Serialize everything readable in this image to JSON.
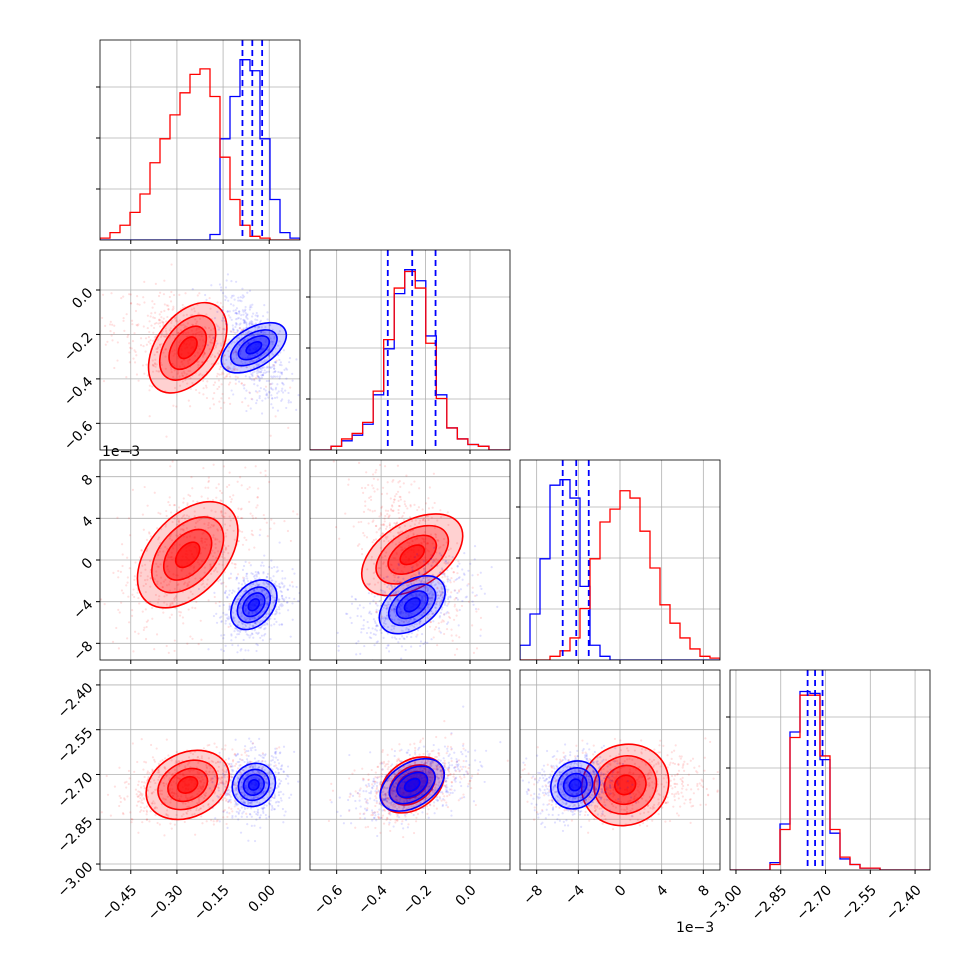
{
  "chart_data": {
    "type": "corner",
    "colors": {
      "blue": "#0000ff",
      "red": "#ff0000"
    },
    "dimensions": [
      {
        "id": "p0",
        "xlim": [
          -0.55,
          0.1
        ],
        "ticks": [
          -0.45,
          -0.3,
          -0.15,
          0.0
        ],
        "tick_labels": [
          "−0.45",
          "−0.30",
          "−0.15",
          "0.00"
        ]
      },
      {
        "id": "p1",
        "xlim": [
          -0.72,
          0.18
        ],
        "ticks": [
          -0.6,
          -0.4,
          -0.2,
          0.0
        ],
        "tick_labels": [
          "−0.6",
          "−0.4",
          "−0.2",
          "0.0"
        ]
      },
      {
        "id": "p2",
        "xlim": [
          -0.0096,
          0.0096
        ],
        "ticks": [
          -0.008,
          -0.004,
          0.0,
          0.004,
          0.008
        ],
        "tick_labels": [
          "−8",
          "−4",
          "0",
          "4",
          "8"
        ],
        "offset_text": "1e−3"
      },
      {
        "id": "p3",
        "xlim": [
          -3.02,
          -2.35
        ],
        "ticks": [
          -3.0,
          -2.85,
          -2.7,
          -2.55,
          -2.4
        ],
        "tick_labels": [
          "−3.00",
          "−2.85",
          "−2.70",
          "−2.55",
          "−2.40"
        ]
      }
    ],
    "row_offset_label": {
      "row": 2,
      "text": "1e−3"
    },
    "x_offset_label": {
      "col": 2,
      "text": "1e−3"
    },
    "histograms": [
      {
        "dim": 0,
        "blue": [
          0,
          0,
          0,
          0,
          0,
          0,
          0,
          0,
          0,
          0,
          0,
          0.03,
          0.55,
          0.78,
          0.98,
          0.92,
          0.55,
          0.22,
          0.04,
          0.01
        ],
        "red": [
          0.01,
          0.04,
          0.08,
          0.15,
          0.25,
          0.42,
          0.55,
          0.68,
          0.8,
          0.9,
          0.93,
          0.78,
          0.45,
          0.22,
          0.08,
          0.02,
          0.01,
          0,
          0,
          0
        ],
        "quantiles_blue": [
          -0.087,
          -0.055,
          -0.023
        ]
      },
      {
        "dim": 1,
        "blue": [
          0,
          0,
          0.02,
          0.05,
          0.08,
          0.14,
          0.3,
          0.55,
          0.85,
          0.98,
          0.92,
          0.62,
          0.3,
          0.12,
          0.06,
          0.03,
          0.02,
          0,
          0
        ],
        "red": [
          0,
          0,
          0.02,
          0.06,
          0.09,
          0.15,
          0.32,
          0.6,
          0.88,
          0.97,
          0.88,
          0.58,
          0.28,
          0.12,
          0.06,
          0.03,
          0.02,
          0,
          0
        ],
        "quantiles_blue": [
          -0.37,
          -0.26,
          -0.155
        ]
      },
      {
        "dim": 2,
        "blue": [
          0.08,
          0.25,
          0.55,
          0.95,
          0.98,
          0.88,
          0.4,
          0.08,
          0.02,
          0,
          0,
          0,
          0,
          0,
          0,
          0,
          0,
          0,
          0,
          0
        ],
        "red": [
          0,
          0,
          0,
          0.02,
          0.05,
          0.12,
          0.28,
          0.55,
          0.75,
          0.82,
          0.92,
          0.88,
          0.7,
          0.5,
          0.3,
          0.2,
          0.12,
          0.06,
          0.02,
          0.01
        ],
        "quantiles_blue": [
          -0.0055,
          -0.0042,
          -0.003
        ]
      },
      {
        "dim": 3,
        "blue": [
          0,
          0,
          0,
          0,
          0.04,
          0.25,
          0.75,
          0.97,
          0.96,
          0.6,
          0.2,
          0.06,
          0.03,
          0.01,
          0.01,
          0,
          0,
          0,
          0,
          0
        ],
        "red": [
          0,
          0,
          0,
          0,
          0.03,
          0.22,
          0.72,
          0.95,
          0.95,
          0.62,
          0.22,
          0.07,
          0.03,
          0.01,
          0.01,
          0,
          0,
          0,
          0,
          0
        ],
        "quantiles_blue": [
          -2.76,
          -2.735,
          -2.71
        ]
      }
    ],
    "distributions": {
      "blue": {
        "mean": [
          -0.05,
          -0.26,
          -0.0043,
          -2.735
        ],
        "sd": [
          0.033,
          0.075,
          0.0012,
          0.035
        ]
      },
      "red": {
        "mean": [
          -0.265,
          -0.26,
          0.0005,
          -2.735
        ],
        "sd": [
          0.075,
          0.075,
          0.0025,
          0.038
        ]
      }
    }
  }
}
